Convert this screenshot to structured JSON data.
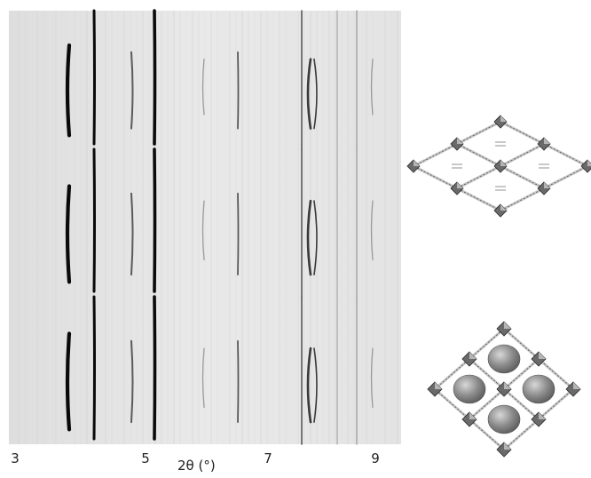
{
  "figure": {
    "pattern_panel": {
      "x_axis": {
        "label": "2θ (°)",
        "ticks": [
          "3",
          "5",
          "7",
          "9"
        ]
      },
      "repeat_count": 3,
      "reflection_colors": {
        "background": "#e9e9e9",
        "strong": "#0a0a0a",
        "medium": "#5a5a5a",
        "weak": "#9a9a9a"
      }
    },
    "structures": [
      {
        "name": "open-framework",
        "spheres": 0
      },
      {
        "name": "guest-loaded-framework",
        "spheres": 4
      }
    ]
  }
}
